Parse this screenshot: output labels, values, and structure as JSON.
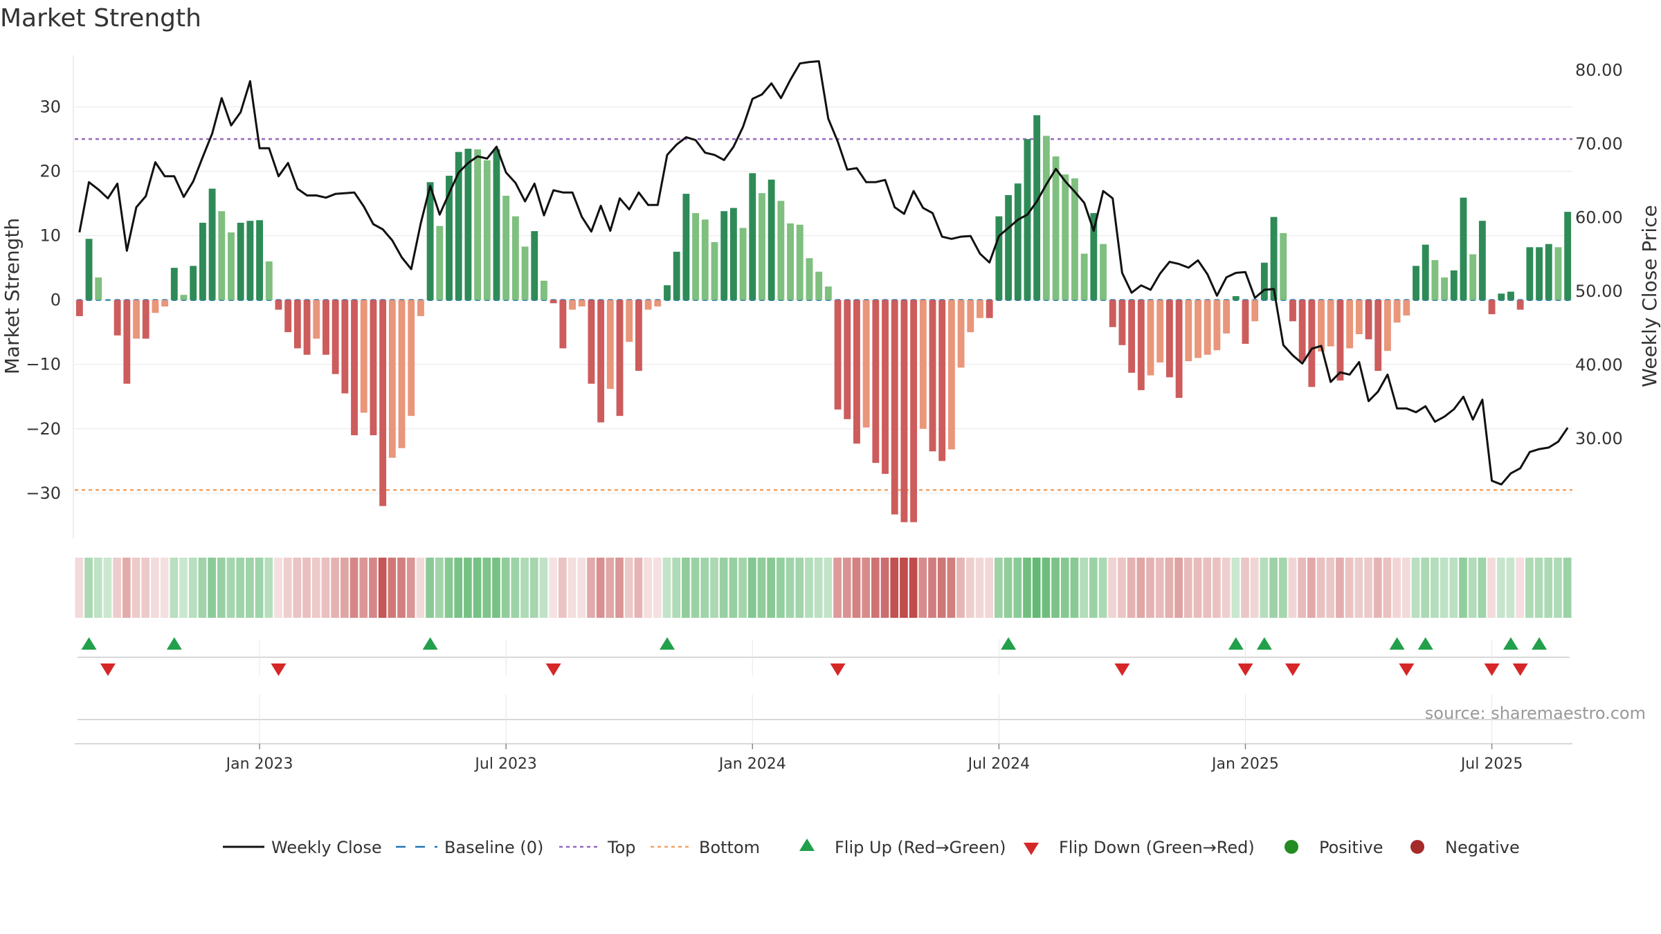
{
  "title": "Market Strength",
  "source": "source: sharemaestro.com",
  "chart_data": {
    "type": "bar+line",
    "title": "Market Strength",
    "ylabel": "Market Strength",
    "ylabel_right": "Weekly Close Price",
    "ylim": [
      -37,
      38
    ],
    "ylim_right": [
      16.5,
      82
    ],
    "yticks": [
      {
        "value": 30,
        "label": "30"
      },
      {
        "value": 20,
        "label": "20"
      },
      {
        "value": 10,
        "label": "10"
      },
      {
        "value": 0,
        "label": "0"
      },
      {
        "value": -10,
        "label": "−10"
      },
      {
        "value": -20,
        "label": "−20"
      },
      {
        "value": -30,
        "label": "−30"
      }
    ],
    "yticks_right": [
      {
        "value": 80,
        "label": "80.00"
      },
      {
        "value": 70,
        "label": "70.00"
      },
      {
        "value": 60,
        "label": "60.00"
      },
      {
        "value": 50,
        "label": "50.00"
      },
      {
        "value": 40,
        "label": "40.00"
      },
      {
        "value": 30,
        "label": "30.00"
      }
    ],
    "xticks": [
      {
        "week": 19,
        "label": "Jan 2023"
      },
      {
        "week": 45,
        "label": "Jul 2023"
      },
      {
        "week": 71,
        "label": "Jan 2024"
      },
      {
        "week": 97,
        "label": "Jul 2024"
      },
      {
        "week": 123,
        "label": "Jan 2025"
      },
      {
        "week": 149,
        "label": "Jul 2025"
      }
    ],
    "top_line": 25,
    "bottom_line": -29.5,
    "baseline": 0,
    "strength": [
      -2.5,
      9.5,
      3.5,
      0,
      -5.5,
      -13,
      -6,
      -6,
      -2,
      -1,
      5,
      0.8,
      5.3,
      12,
      17.3,
      13.8,
      10.5,
      12,
      12.3,
      12.4,
      6,
      -1.5,
      -5,
      -7.5,
      -8.5,
      -6,
      -8.5,
      -11.5,
      -14.5,
      -21,
      -17.5,
      -21,
      -32,
      -24.5,
      -23,
      -18,
      -2.5,
      18.3,
      11.5,
      19.3,
      23,
      23.5,
      23.4,
      21.7,
      23.4,
      16.2,
      13,
      8.3,
      10.7,
      3,
      -0.5,
      -7.5,
      -1.5,
      -1,
      -13,
      -19,
      -13.8,
      -18,
      -6.5,
      -11,
      -1.5,
      -1,
      2.3,
      7.5,
      16.5,
      13.5,
      12.5,
      9,
      13.8,
      14.3,
      11.2,
      19.7,
      16.6,
      18.7,
      15.4,
      11.9,
      11.7,
      6.5,
      4.4,
      2.1,
      -17,
      -18.5,
      -22.3,
      -19.8,
      -25.3,
      -27,
      -33.3,
      -34.5,
      -34.5,
      -20,
      -23.5,
      -25,
      -23.2,
      -10.5,
      -5,
      -2.8,
      -2.8,
      13,
      16.3,
      18.1,
      25,
      28.7,
      25.5,
      22.3,
      19.5,
      18.9,
      7.2,
      13.5,
      8.7,
      -4.2,
      -7,
      -11.3,
      -14,
      -11.7,
      -9.7,
      -12,
      -15.2,
      -9.5,
      -9,
      -8.5,
      -7.8,
      -5.2,
      0.6,
      -6.8,
      -3.3,
      5.8,
      12.9,
      10.4,
      -3.3,
      -9.5,
      -13.5,
      -8,
      -7.2,
      -12.5,
      -7.5,
      -5.3,
      -6.1,
      -11,
      -7.9,
      -3.5,
      -2.4,
      5.3,
      8.6,
      6.2,
      3.5,
      4.6,
      15.9,
      7.1,
      12.3,
      -2.2,
      1,
      1.3,
      -1.5,
      8.2,
      8.2,
      8.7,
      8.2,
      13.7
    ],
    "weekly_close": [
      58,
      64.8,
      63.8,
      62.6,
      64.6,
      55.5,
      61.4,
      62.9,
      67.5,
      65.6,
      65.6,
      62.8,
      64.9,
      68.2,
      71.4,
      76.2,
      72.5,
      74.3,
      78.5,
      69.4,
      69.4,
      65.6,
      67.4,
      63.9,
      63,
      63,
      62.7,
      63.2,
      63.3,
      63.4,
      61.5,
      59.1,
      58.4,
      56.9,
      54.6,
      53,
      59.2,
      64.3,
      60.4,
      63.3,
      66.1,
      67.4,
      68.3,
      68,
      69.6,
      66.1,
      64.7,
      62.2,
      64.6,
      60.3,
      63.7,
      63.4,
      63.4,
      60.1,
      58.1,
      61.6,
      58.2,
      62.6,
      61.1,
      63.4,
      61.7,
      61.7,
      68.5,
      69.9,
      70.9,
      70.5,
      68.8,
      68.5,
      67.8,
      69.6,
      72.3,
      76.1,
      76.7,
      78.2,
      76.2,
      78.7,
      80.9,
      81.1,
      81.2,
      73.4,
      70.3,
      66.5,
      66.7,
      64.8,
      64.8,
      65.1,
      61.4,
      60.5,
      63.6,
      61.3,
      60.6,
      57.4,
      57.1,
      57.4,
      57.5,
      55.1,
      53.9,
      57.5,
      58.6,
      59.7,
      60.4,
      62.2,
      64.5,
      66.6,
      64.9,
      63.5,
      62,
      58.2,
      63.6,
      62.6,
      52.5,
      49.8,
      50.8,
      50.2,
      52.4,
      54,
      53.7,
      53.2,
      54.2,
      52.3,
      49.4,
      51.9,
      52.5,
      52.6,
      49.1,
      50.2,
      50.3,
      42.7,
      41.3,
      40.2,
      42.2,
      42.6,
      37.7,
      39,
      38.7,
      40.4,
      35.1,
      36.4,
      38.7,
      34.1,
      34.1,
      33.6,
      34.4,
      32.3,
      33,
      34,
      35.7,
      32.6,
      35.3,
      24.3,
      23.8,
      25.3,
      26,
      28.2,
      28.6,
      28.8,
      29.6,
      31.5
    ],
    "flips_up": [
      1,
      10,
      37,
      62,
      98,
      122,
      125,
      139,
      142,
      151,
      154
    ],
    "flips_down": [
      3,
      21,
      50,
      80,
      110,
      123,
      128,
      140,
      149,
      152
    ]
  },
  "legend": [
    {
      "key": "weekly_close",
      "label": "Weekly Close"
    },
    {
      "key": "baseline",
      "label": "Baseline (0)"
    },
    {
      "key": "top",
      "label": "Top"
    },
    {
      "key": "bottom",
      "label": "Bottom"
    },
    {
      "key": "flip_up",
      "label": "Flip Up (Red→Green)"
    },
    {
      "key": "flip_down",
      "label": "Flip Down (Green→Red)"
    },
    {
      "key": "positive",
      "label": "Positive"
    },
    {
      "key": "negative",
      "label": "Negative"
    }
  ],
  "colors": {
    "pos_dark": "#2e8b57",
    "pos_light": "#7fbf7f",
    "neg_dark": "#cd5c5c",
    "neg_light": "#e9967a",
    "price": "#111111",
    "baseline": "#1f77b4",
    "top": "#9467bd",
    "bottom": "#f4a261",
    "flip_up": "#22a04b",
    "flip_down": "#d62728",
    "positive": "#228b22",
    "negative": "#a52a2a",
    "grid": "#e8e8e8"
  }
}
